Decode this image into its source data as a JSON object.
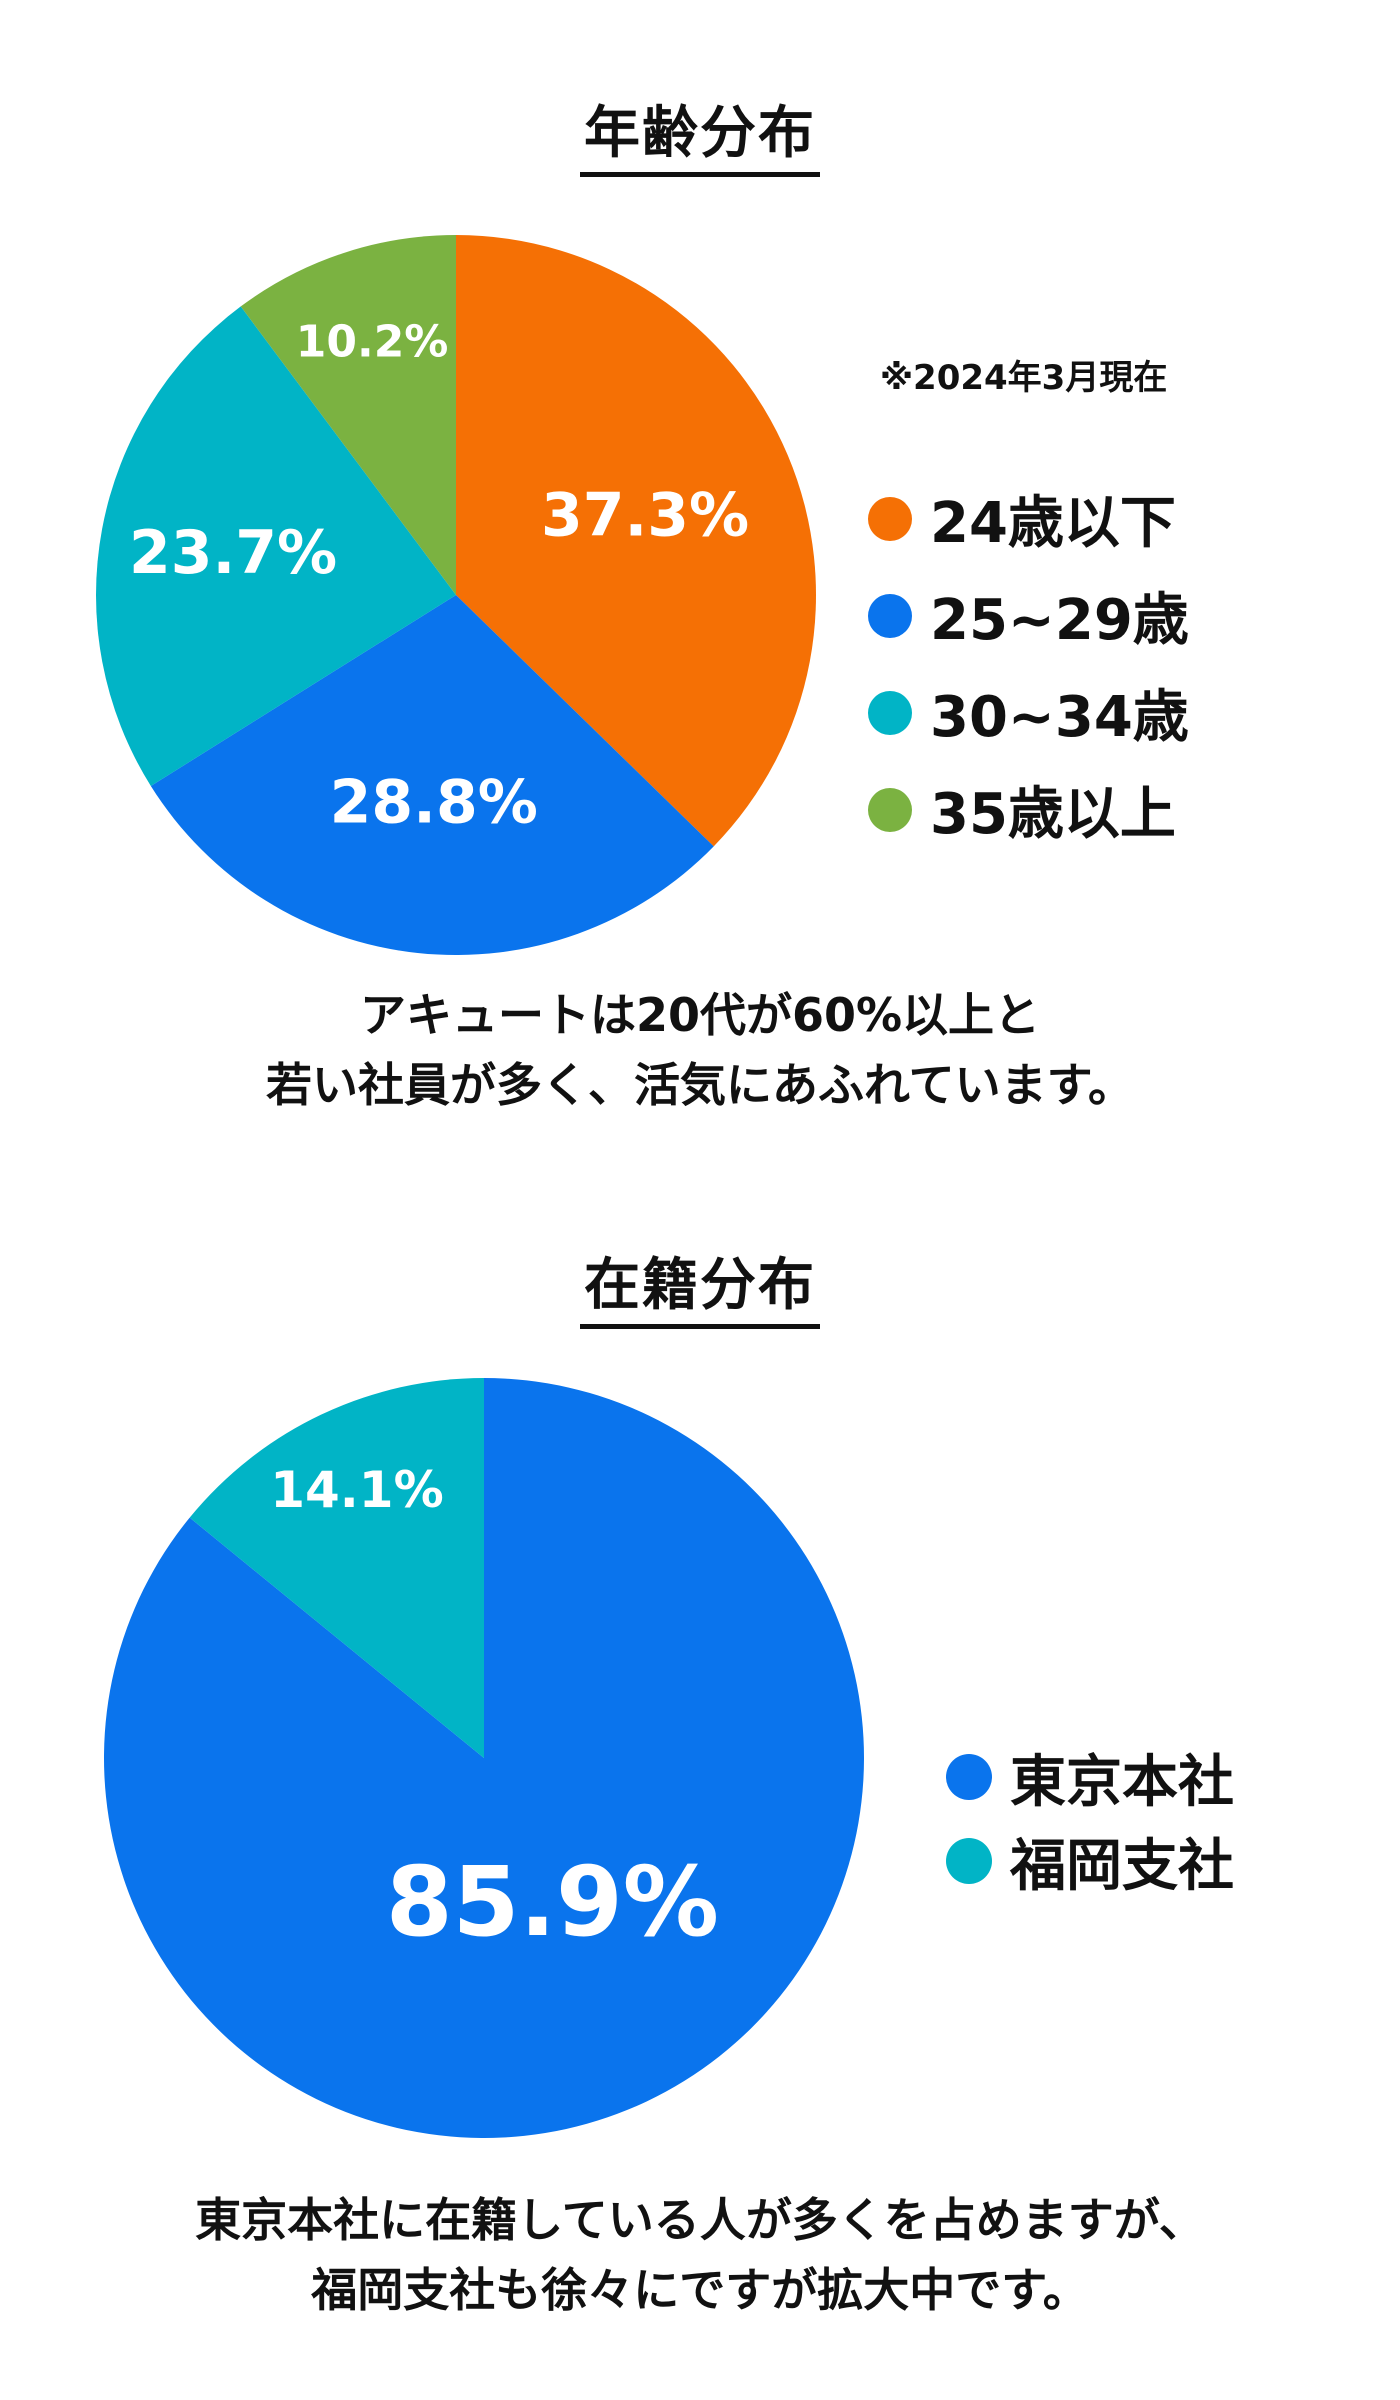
{
  "chart_data": [
    {
      "type": "pie",
      "title": "年齢分布",
      "note": "※2024年3月現在",
      "categories": [
        "24歳以下",
        "25~29歳",
        "30~34歳",
        "35歳以上"
      ],
      "values": [
        37.3,
        28.8,
        23.7,
        10.2
      ],
      "labels": [
        "37.3%",
        "28.8%",
        "23.7%",
        "10.2%"
      ],
      "colors": [
        "#f57005",
        "#0a74ed",
        "#01b4c6",
        "#7bb241"
      ],
      "legend_position": "right",
      "caption": [
        "アキュートは20代が60%以上と",
        "若い社員が多く、活気にあふれています。"
      ]
    },
    {
      "type": "pie",
      "title": "在籍分布",
      "categories": [
        "東京本社",
        "福岡支社"
      ],
      "values": [
        85.9,
        14.1
      ],
      "labels": [
        "85.9%",
        "14.1%"
      ],
      "colors": [
        "#0a74ed",
        "#01b4c6"
      ],
      "legend_position": "right",
      "caption": [
        "東京本社に在籍している人が多くを占めますが、",
        "福岡支社も徐々にですが拡大中です。"
      ]
    }
  ]
}
